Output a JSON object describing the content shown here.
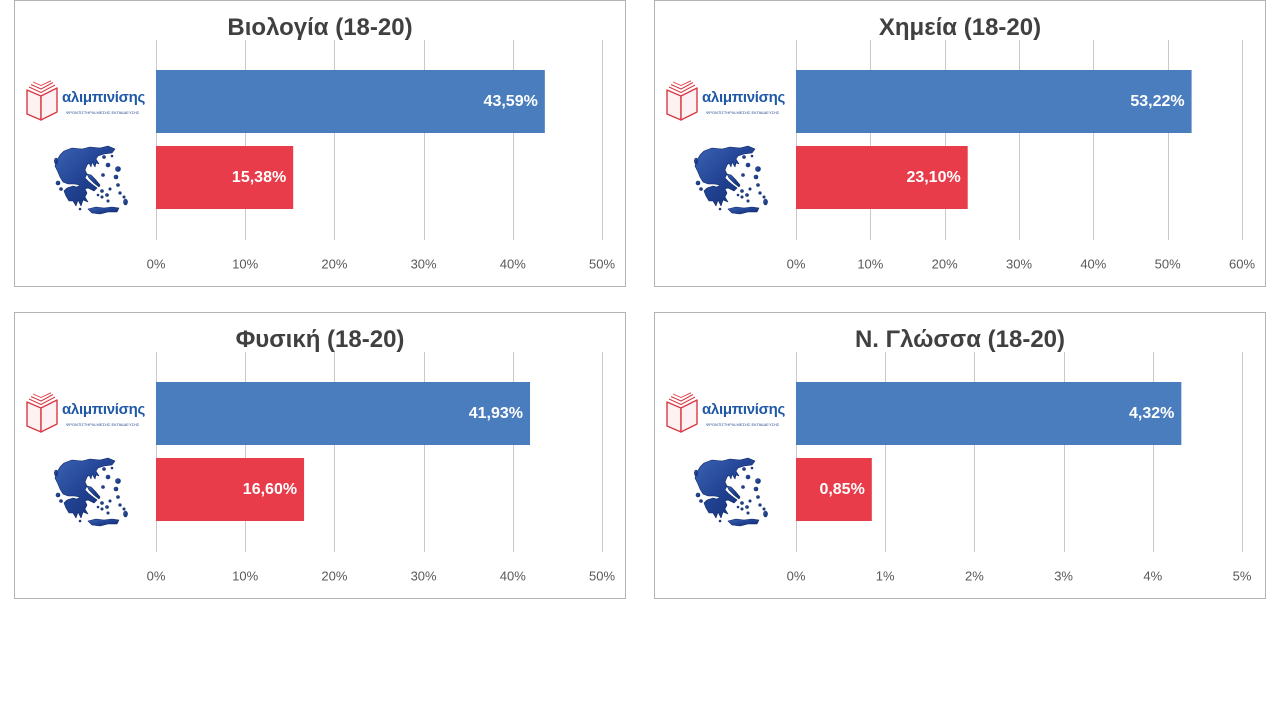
{
  "logo": {
    "name": "αλιμπινίσης",
    "tagline": "ΦΡΟΝΤΙΣΤΗΡΙΑ ΜΕΣΗΣ ΕΚΠΑΙΔΕΥΣΗΣ"
  },
  "colors": {
    "school_bar": "#4a7dbd",
    "national_bar": "#e83c4a",
    "title_text": "#404040",
    "tick_text": "#595959",
    "gridline": "#c9c9c9",
    "logo_text": "#1f5aa6",
    "logo_book": "#d93a46",
    "map_fill": "#1f3f8f"
  },
  "chart_data": [
    {
      "type": "bar",
      "orientation": "horizontal",
      "title": "Βιολογία (18-20)",
      "xlim": [
        0,
        50
      ],
      "xticks": [
        0,
        10,
        20,
        30,
        40,
        50
      ],
      "xtick_labels": [
        "0%",
        "10%",
        "20%",
        "30%",
        "40%",
        "50%"
      ],
      "grid": true,
      "bars": [
        {
          "icon": "alimpinisis-logo",
          "value": 43.59,
          "label": "43,59%",
          "color": "#4a7dbd"
        },
        {
          "icon": "greece-map-icon",
          "value": 15.38,
          "label": "15,38%",
          "color": "#e83c4a"
        }
      ]
    },
    {
      "type": "bar",
      "orientation": "horizontal",
      "title": "Χημεία (18-20)",
      "xlim": [
        0,
        60
      ],
      "xticks": [
        0,
        10,
        20,
        30,
        40,
        50,
        60
      ],
      "xtick_labels": [
        "0%",
        "10%",
        "20%",
        "30%",
        "40%",
        "50%",
        "60%"
      ],
      "grid": true,
      "bars": [
        {
          "icon": "alimpinisis-logo",
          "value": 53.22,
          "label": "53,22%",
          "color": "#4a7dbd"
        },
        {
          "icon": "greece-map-icon",
          "value": 23.1,
          "label": "23,10%",
          "color": "#e83c4a"
        }
      ]
    },
    {
      "type": "bar",
      "orientation": "horizontal",
      "title": "Φυσική (18-20)",
      "xlim": [
        0,
        50
      ],
      "xticks": [
        0,
        10,
        20,
        30,
        40,
        50
      ],
      "xtick_labels": [
        "0%",
        "10%",
        "20%",
        "30%",
        "40%",
        "50%"
      ],
      "grid": true,
      "bars": [
        {
          "icon": "alimpinisis-logo",
          "value": 41.93,
          "label": "41,93%",
          "color": "#4a7dbd"
        },
        {
          "icon": "greece-map-icon",
          "value": 16.6,
          "label": "16,60%",
          "color": "#e83c4a"
        }
      ]
    },
    {
      "type": "bar",
      "orientation": "horizontal",
      "title": "Ν. Γλώσσα (18-20)",
      "xlim": [
        0,
        5
      ],
      "xticks": [
        0,
        1,
        2,
        3,
        4,
        5
      ],
      "xtick_labels": [
        "0%",
        "1%",
        "2%",
        "3%",
        "4%",
        "5%"
      ],
      "grid": true,
      "bars": [
        {
          "icon": "alimpinisis-logo",
          "value": 4.32,
          "label": "4,32%",
          "color": "#4a7dbd"
        },
        {
          "icon": "greece-map-icon",
          "value": 0.85,
          "label": "0,85%",
          "color": "#e83c4a"
        }
      ]
    }
  ]
}
